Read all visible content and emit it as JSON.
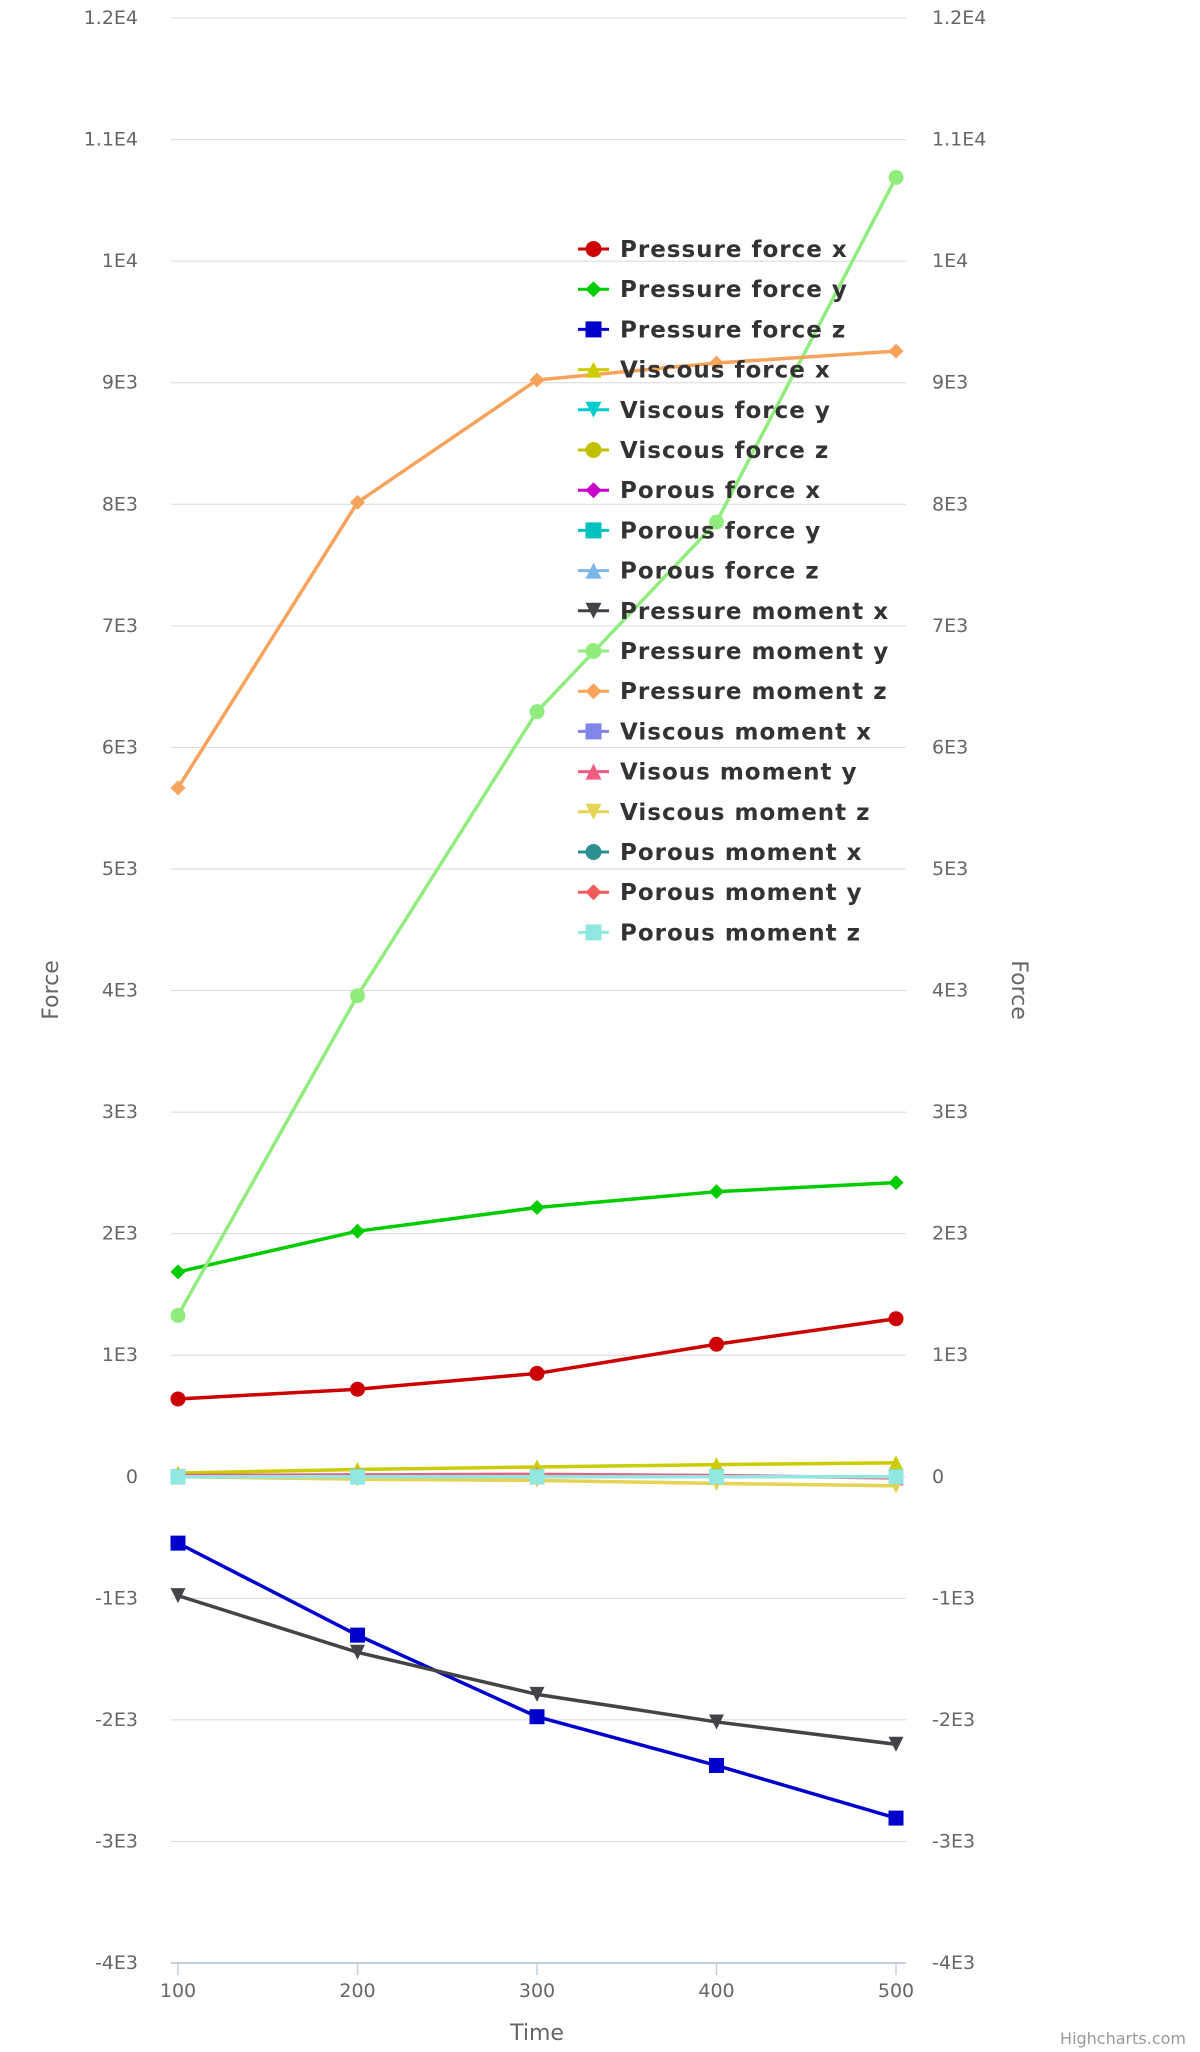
{
  "chart_data": {
    "type": "line",
    "title": "",
    "xlabel": "Time",
    "ylabel": "Force",
    "ylabel_right": "Force",
    "x": [
      100,
      200,
      300,
      400,
      500
    ],
    "xlim": [
      100,
      500
    ],
    "ylim": [
      -4000,
      12000
    ],
    "y_ticks": [
      {
        "value": 12000,
        "label": "1.2E4"
      },
      {
        "value": 11000,
        "label": "1.1E4"
      },
      {
        "value": 10000,
        "label": "1E4"
      },
      {
        "value": 9000,
        "label": "9E3"
      },
      {
        "value": 8000,
        "label": "8E3"
      },
      {
        "value": 7000,
        "label": "7E3"
      },
      {
        "value": 6000,
        "label": "6E3"
      },
      {
        "value": 5000,
        "label": "5E3"
      },
      {
        "value": 4000,
        "label": "4E3"
      },
      {
        "value": 3000,
        "label": "3E3"
      },
      {
        "value": 2000,
        "label": "2E3"
      },
      {
        "value": 1000,
        "label": "1E3"
      },
      {
        "value": 0,
        "label": "0"
      },
      {
        "value": -1000,
        "label": "-1E3"
      },
      {
        "value": -2000,
        "label": "-2E3"
      },
      {
        "value": -3000,
        "label": "-3E3"
      },
      {
        "value": -4000,
        "label": "-4E3"
      }
    ],
    "x_ticks": [
      "100",
      "200",
      "300",
      "400",
      "500"
    ],
    "grid": true,
    "legend_position": "right",
    "series": [
      {
        "name": "Pressure force x",
        "color": "#cc0000",
        "marker": "circle",
        "values": [
          640,
          720,
          850,
          1090,
          1300
        ]
      },
      {
        "name": "Pressure force y",
        "color": "#00cc00",
        "marker": "diamond",
        "values": [
          1685,
          2020,
          2215,
          2345,
          2420
        ]
      },
      {
        "name": "Pressure force z",
        "color": "#0000cc",
        "marker": "square",
        "values": [
          -546,
          -1303,
          -1974,
          -2375,
          -2808
        ]
      },
      {
        "name": "Viscous force x",
        "color": "#cccc00",
        "marker": "triangle",
        "values": [
          30,
          60,
          80,
          100,
          115
        ]
      },
      {
        "name": "Viscous force y",
        "color": "#00cccc",
        "marker": "triangle-down",
        "values": [
          0,
          0,
          0,
          0,
          0
        ]
      },
      {
        "name": "Viscous force z",
        "color": "#c0c000",
        "marker": "circle",
        "values": [
          0,
          0,
          0,
          0,
          0
        ]
      },
      {
        "name": "Porous force x",
        "color": "#cc00cc",
        "marker": "diamond",
        "values": [
          0,
          0,
          0,
          0,
          0
        ]
      },
      {
        "name": "Porous force y",
        "color": "#00c0c0",
        "marker": "square",
        "values": [
          0,
          0,
          0,
          0,
          0
        ]
      },
      {
        "name": "Porous force z",
        "color": "#7cb5ec",
        "marker": "triangle",
        "values": [
          0,
          0,
          0,
          0,
          0
        ]
      },
      {
        "name": "Pressure moment x",
        "color": "#434348",
        "marker": "triangle-down",
        "values": [
          -978,
          -1444,
          -1790,
          -2017,
          -2201
        ]
      },
      {
        "name": "Pressure moment y",
        "color": "#90ed7d",
        "marker": "circle",
        "values": [
          1327,
          3957,
          6294,
          7853,
          10688
        ]
      },
      {
        "name": "Pressure moment z",
        "color": "#f7a35c",
        "marker": "diamond",
        "values": [
          5667,
          8015,
          9022,
          9162,
          9260
        ]
      },
      {
        "name": "Viscous moment x",
        "color": "#8085e9",
        "marker": "square",
        "values": [
          0,
          0,
          0,
          0,
          0
        ]
      },
      {
        "name": "Visous moment y",
        "color": "#f15c80",
        "marker": "triangle",
        "values": [
          10,
          15,
          20,
          10,
          -10
        ]
      },
      {
        "name": "Viscous moment z",
        "color": "#e4d354",
        "marker": "triangle-down",
        "values": [
          0,
          -20,
          -30,
          -55,
          -75
        ]
      },
      {
        "name": "Porous moment x",
        "color": "#2b908f",
        "marker": "circle",
        "values": [
          0,
          0,
          0,
          0,
          0
        ]
      },
      {
        "name": "Porous moment y",
        "color": "#f45b5b",
        "marker": "diamond",
        "values": [
          0,
          0,
          0,
          0,
          0
        ]
      },
      {
        "name": "Porous moment z",
        "color": "#91e8e1",
        "marker": "square",
        "values": [
          0,
          0,
          0,
          0,
          0
        ]
      }
    ]
  },
  "credits": "Highcharts.com"
}
